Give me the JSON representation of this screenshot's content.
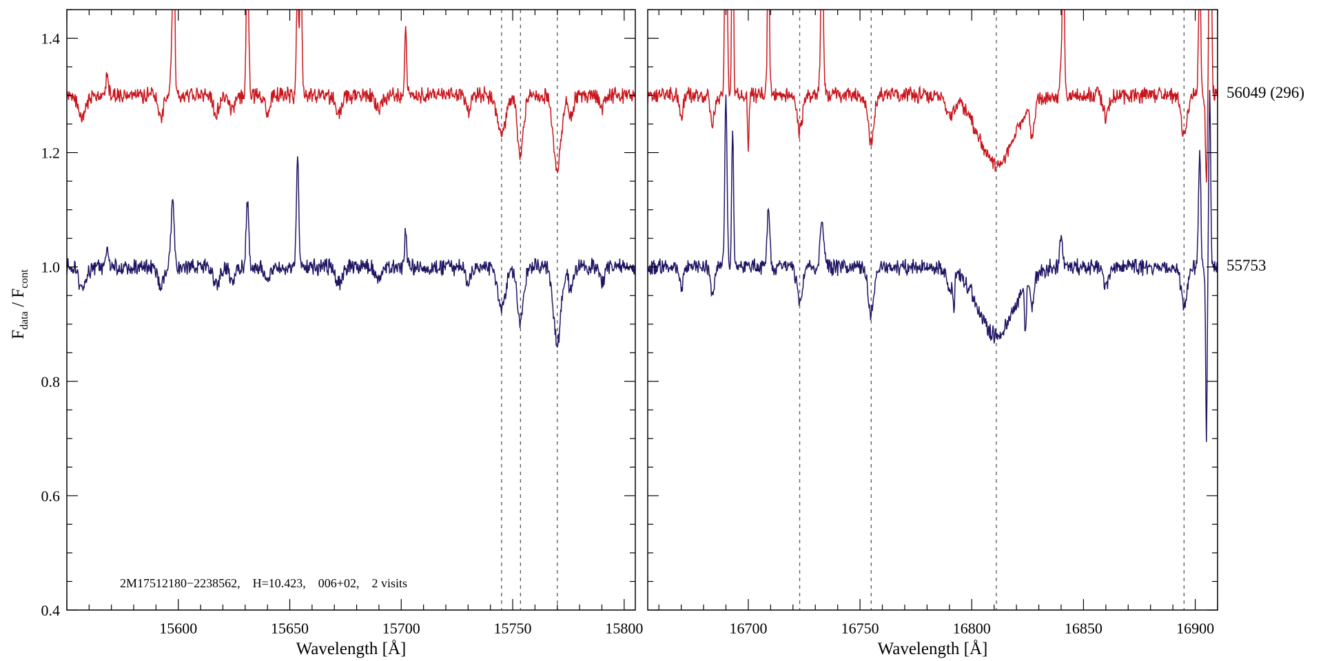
{
  "chart_data": {
    "type": "line",
    "ylabel": {
      "main": "F",
      "sub1": "data",
      "mid": " / F",
      "sub2": "cont"
    },
    "ylim": [
      0.4,
      1.45
    ],
    "yticks": [
      0.4,
      0.6,
      0.8,
      1.0,
      1.2,
      1.4
    ],
    "ytick_labels": [
      "0.4",
      "0.6",
      "0.8",
      "1.0",
      "1.2",
      "1.4"
    ],
    "annotation": "2M17512180−2238562,    H=10.423,    006+02,    2 visits",
    "series": [
      {
        "name": "56049 (296)",
        "color": "#c8161d",
        "offset": 1.3
      },
      {
        "name": "55753",
        "color": "#1f1663",
        "offset": 1.0
      }
    ],
    "panels": [
      {
        "xlabel": "Wavelength [Å]",
        "xlim": [
          15550,
          15805
        ],
        "xticks": [
          15600,
          15650,
          15700,
          15750,
          15800
        ],
        "xtick_labels": [
          "15600",
          "15650",
          "15700",
          "15750",
          "15800"
        ],
        "vlines": [
          15745,
          15753.5,
          15770
        ],
        "features": [
          [
            15557,
            -0.04,
            1.5
          ],
          [
            15568,
            0.03,
            0.6
          ],
          [
            15592,
            -0.035,
            1.2
          ],
          [
            15597.5,
            0.12,
            0.7
          ],
          [
            15617,
            -0.03,
            1.5
          ],
          [
            15624,
            -0.025,
            1.2
          ],
          [
            15631,
            0.11,
            0.6
          ],
          [
            15640,
            -0.03,
            1.2
          ],
          [
            15653.5,
            0.2,
            0.5
          ],
          [
            15672,
            -0.03,
            1.5
          ],
          [
            15690,
            -0.025,
            1.3
          ],
          [
            15702,
            0.06,
            0.5
          ],
          [
            15730,
            -0.03,
            1.0
          ],
          [
            15745,
            -0.07,
            1.8
          ],
          [
            15753.5,
            -0.1,
            1.4
          ],
          [
            15770,
            -0.13,
            1.7
          ],
          [
            15776,
            -0.04,
            1.0
          ],
          [
            15790,
            -0.03,
            1.0
          ]
        ],
        "top_only": [
          [
            15598,
            0.35,
            0.35
          ],
          [
            15631,
            0.13,
            0.5
          ],
          [
            15655,
            0.3,
            0.4
          ],
          [
            15702,
            0.06,
            0.4
          ]
        ],
        "bottom_only": []
      },
      {
        "xlabel": "Wavelength [Å]",
        "xlim": [
          16655,
          16910
        ],
        "xticks": [
          16700,
          16750,
          16800,
          16850,
          16900
        ],
        "xtick_labels": [
          "16700",
          "16750",
          "16800",
          "16850",
          "16900"
        ],
        "vlines": [
          16723,
          16755,
          16811,
          16895
        ],
        "features": [
          [
            16670,
            -0.04,
            0.8
          ],
          [
            16684,
            -0.05,
            0.8
          ],
          [
            16690,
            0.3,
            0.5
          ],
          [
            16693,
            0.25,
            0.4
          ],
          [
            16709,
            0.1,
            0.6
          ],
          [
            16723,
            -0.06,
            1.2
          ],
          [
            16733,
            0.08,
            0.8
          ],
          [
            16755,
            -0.08,
            1.3
          ],
          [
            16790,
            -0.035,
            1.5
          ],
          [
            16811,
            -0.12,
            8.0
          ],
          [
            16827,
            -0.05,
            1.0
          ],
          [
            16840,
            0.06,
            0.6
          ],
          [
            16860,
            -0.035,
            1.2
          ],
          [
            16895,
            -0.07,
            1.3
          ],
          [
            16902,
            0.2,
            0.5
          ],
          [
            16905,
            -0.15,
            0.4
          ],
          [
            16906.5,
            0.3,
            0.4
          ]
        ],
        "top_only": [
          [
            16690,
            0.3,
            0.4
          ],
          [
            16693,
            0.2,
            0.3
          ],
          [
            16700,
            -0.1,
            0.3
          ],
          [
            16709,
            0.3,
            0.3
          ],
          [
            16733,
            0.3,
            0.4
          ],
          [
            16841,
            0.3,
            0.4
          ],
          [
            16907,
            0.3,
            0.4
          ]
        ],
        "bottom_only": [
          [
            16792,
            -0.06,
            0.3
          ],
          [
            16824,
            -0.08,
            0.4
          ],
          [
            16905,
            -0.15,
            0.3
          ]
        ]
      }
    ]
  }
}
